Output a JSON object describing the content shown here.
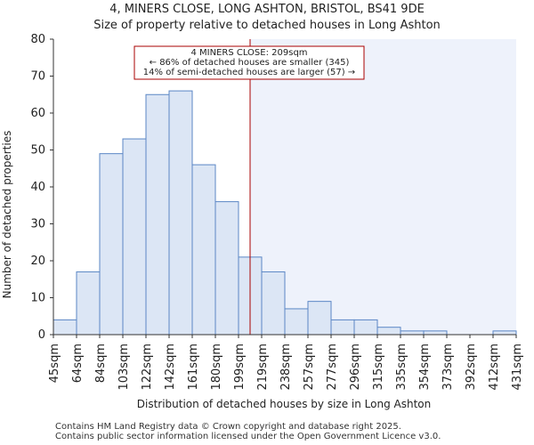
{
  "chart_data": {
    "type": "bar",
    "title": "4, MINERS CLOSE, LONG ASHTON, BRISTOL, BS41 9DE",
    "subtitle": "Size of property relative to detached houses in Long Ashton",
    "xlabel": "Distribution of detached houses by size in Long Ashton",
    "ylabel": "Number of detached properties",
    "ylim": [
      0,
      80
    ],
    "yticks": [
      0,
      10,
      20,
      30,
      40,
      50,
      60,
      70,
      80
    ],
    "tick_labels": [
      "45sqm",
      "64sqm",
      "84sqm",
      "103sqm",
      "122sqm",
      "142sqm",
      "161sqm",
      "180sqm",
      "199sqm",
      "219sqm",
      "238sqm",
      "257sqm",
      "277sqm",
      "296sqm",
      "315sqm",
      "335sqm",
      "354sqm",
      "373sqm",
      "392sqm",
      "412sqm",
      "431sqm"
    ],
    "values": [
      4,
      17,
      49,
      53,
      65,
      66,
      46,
      36,
      21,
      17,
      7,
      9,
      4,
      4,
      2,
      1,
      1,
      0,
      0,
      1
    ],
    "marker_bin_position": 8.5,
    "annotation": {
      "line1": "4 MINERS CLOSE: 209sqm",
      "line2": "← 86% of detached houses are smaller (345)",
      "line3": "14% of semi-detached houses are larger (57) →"
    },
    "colors": {
      "bar_fill": "#dce6f5",
      "bar_stroke": "#5b87c5",
      "marker": "#aa0000",
      "highlight_bg": "#eef2fb"
    }
  },
  "footer": {
    "line1": "Contains HM Land Registry data © Crown copyright and database right 2025.",
    "line2": "Contains public sector information licensed under the Open Government Licence v3.0."
  }
}
